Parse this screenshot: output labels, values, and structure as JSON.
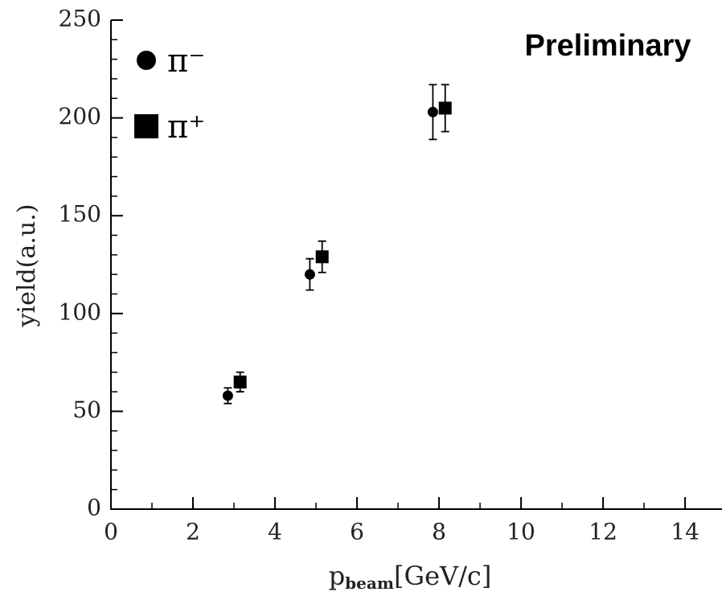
{
  "chart_data": {
    "type": "scatter",
    "annotation": "Preliminary",
    "y_label": "yield(a.u.)",
    "x_label": {
      "main": "p",
      "subscript": "beam",
      "unit": "[GeV/c]"
    },
    "xlim": [
      0,
      14.9
    ],
    "ylim": [
      0,
      250
    ],
    "xticks": [
      0,
      2,
      4,
      6,
      8,
      10,
      12,
      14
    ],
    "yticks": [
      0,
      50,
      100,
      150,
      200,
      250
    ],
    "series": [
      {
        "name": "π⁻",
        "color": "#000000",
        "marker": "circle",
        "x": [
          2.85,
          4.85,
          7.85
        ],
        "values": [
          58,
          120,
          203
        ],
        "errors": [
          4,
          8,
          14
        ]
      },
      {
        "name": "π⁺",
        "color": "#000000",
        "marker": "square",
        "x": [
          3.15,
          5.15,
          8.15
        ],
        "values": [
          65,
          129,
          205
        ],
        "errors": [
          5,
          8,
          12
        ]
      }
    ]
  }
}
